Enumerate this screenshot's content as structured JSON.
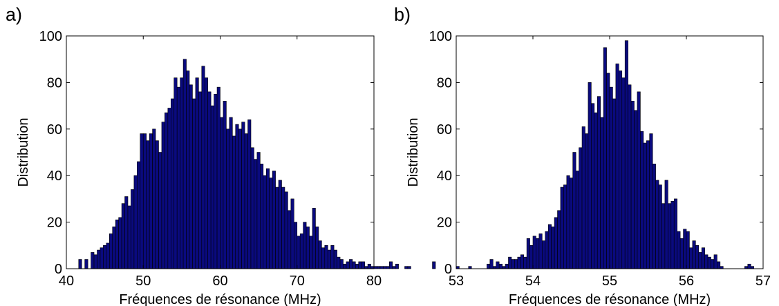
{
  "panel_labels": [
    "a)",
    "b)"
  ],
  "chart_data": [
    {
      "type": "bar",
      "xlabel": "Fréquences de résonance   (MHz)",
      "ylabel": "Distribution",
      "xlim": [
        40,
        80
      ],
      "ylim": [
        0,
        100
      ],
      "xticks": [
        "40",
        "50",
        "60",
        "70",
        "80"
      ],
      "yticks": [
        "0",
        "20",
        "40",
        "60",
        "80",
        "100"
      ],
      "bar_color": "#0a0a7e",
      "bin_start": 40.0,
      "bin_width": 0.4,
      "values": [
        0,
        0,
        0,
        0,
        4,
        0,
        4,
        0,
        7,
        6,
        8,
        9,
        10,
        11,
        15,
        18,
        21,
        22,
        28,
        31,
        27,
        34,
        40,
        46,
        58,
        58,
        55,
        58,
        60,
        55,
        50,
        63,
        67,
        69,
        73,
        82,
        78,
        82,
        90,
        85,
        79,
        73,
        82,
        76,
        87,
        82,
        76,
        70,
        75,
        78,
        65,
        72,
        60,
        65,
        57,
        62,
        60,
        63,
        58,
        64,
        52,
        47,
        50,
        45,
        40,
        43,
        39,
        42,
        35,
        38,
        35,
        33,
        25,
        30,
        20,
        14,
        15,
        20,
        18,
        14,
        26,
        18,
        12,
        9,
        10,
        8,
        10,
        8,
        5,
        4,
        2,
        3,
        4,
        3,
        2,
        3,
        3,
        1,
        2,
        1,
        1,
        1,
        1,
        1,
        1,
        3,
        1,
        2,
        0,
        0,
        1,
        1,
        0,
        0,
        0,
        0,
        0,
        0,
        0,
        3
      ]
    },
    {
      "type": "bar",
      "xlabel": "Fréquences de résonance   (MHz)",
      "ylabel": "Distribution",
      "xlim": [
        53,
        57
      ],
      "ylim": [
        0,
        100
      ],
      "xticks": [
        "53",
        "54",
        "55",
        "56",
        "57"
      ],
      "yticks": [
        "0",
        "20",
        "40",
        "60",
        "80",
        "100"
      ],
      "bar_color": "#0a0a7e",
      "bin_start": 53.0,
      "bin_width": 0.04,
      "values": [
        1,
        0,
        0,
        0,
        1,
        0,
        0,
        0,
        0,
        0,
        2,
        4,
        1,
        3,
        2,
        1,
        2,
        5,
        4,
        4,
        5,
        6,
        5,
        13,
        10,
        14,
        13,
        15,
        12,
        16,
        19,
        18,
        22,
        25,
        35,
        36,
        40,
        39,
        50,
        42,
        52,
        61,
        58,
        80,
        71,
        67,
        74,
        65,
        95,
        84,
        78,
        73,
        88,
        85,
        82,
        98,
        79,
        72,
        68,
        76,
        59,
        54,
        55,
        58,
        45,
        38,
        36,
        28,
        38,
        28,
        29,
        30,
        16,
        13,
        17,
        16,
        9,
        12,
        10,
        7,
        9,
        6,
        5,
        4,
        6,
        3,
        1,
        0,
        0,
        0,
        0,
        0,
        0,
        0,
        1,
        2,
        1,
        0,
        0,
        0
      ]
    }
  ]
}
